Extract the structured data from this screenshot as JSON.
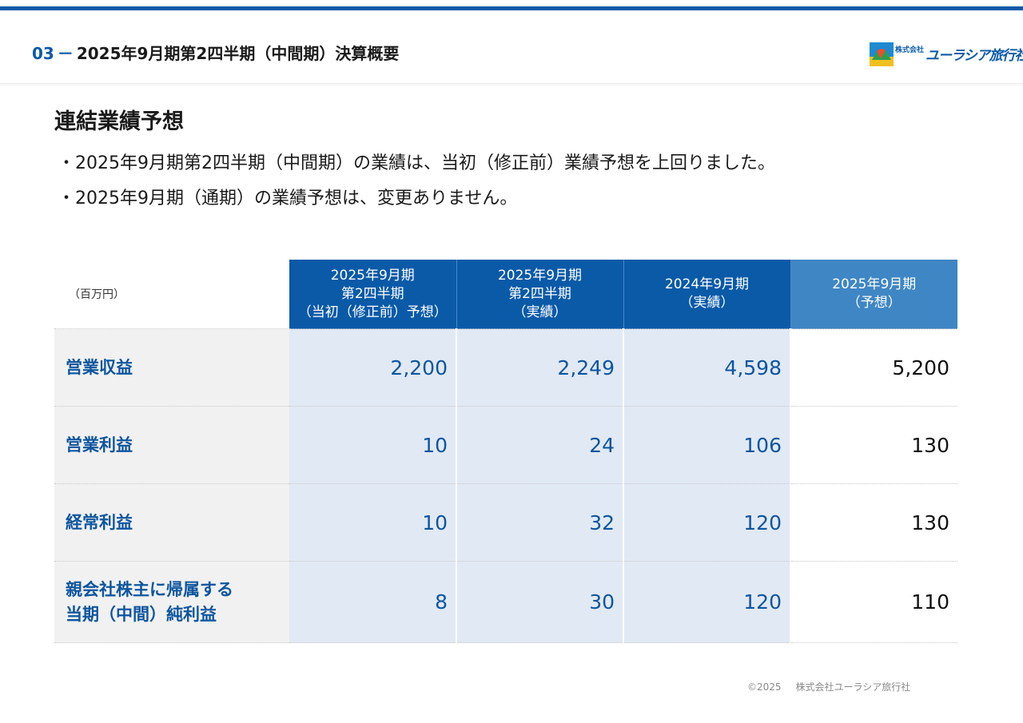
{
  "header": {
    "section_number": "03",
    "separator": "－",
    "title": "2025年9月期第2四半期（中間期）決算概要",
    "logo": {
      "small": "株式会社",
      "text": "ユーラシア旅行社"
    }
  },
  "slide": {
    "title": "連結業績予想",
    "bullets": [
      "・2025年9月期第2四半期（中間期）の業績は、当初（修正前）業績予想を上回りました。",
      "・2025年9月期（通期）の業績予想は、変更ありません。"
    ]
  },
  "table": {
    "unit": "（百万円）",
    "columns": [
      {
        "lines": [
          "2025年9月期",
          "第2四半期",
          "（当初（修正前）予想）"
        ]
      },
      {
        "lines": [
          "2025年9月期",
          "第2四半期",
          "（実績）"
        ]
      },
      {
        "lines": [
          "2024年9月期",
          "（実績）"
        ]
      },
      {
        "lines": [
          "2025年9月期",
          "（予想）"
        ]
      }
    ],
    "rows": [
      {
        "label_lines": [
          "営業収益"
        ],
        "values": [
          "2,200",
          "2,249",
          "4,598",
          "5,200"
        ]
      },
      {
        "label_lines": [
          "営業利益"
        ],
        "values": [
          "10",
          "24",
          "106",
          "130"
        ]
      },
      {
        "label_lines": [
          "経常利益"
        ],
        "values": [
          "10",
          "32",
          "120",
          "130"
        ]
      },
      {
        "label_lines": [
          "親会社株主に帰属する",
          "当期（中間）純利益"
        ],
        "values": [
          "8",
          "30",
          "120",
          "110"
        ]
      }
    ]
  },
  "footer": {
    "copyright": "©2025",
    "company": "株式会社ユーラシア旅行社"
  },
  "colors": {
    "primary": "#0a5aa8",
    "plan_header": "#3f86c4",
    "cell_tint": "#e1e9f4",
    "row_header_bg": "#f1f1f1"
  }
}
